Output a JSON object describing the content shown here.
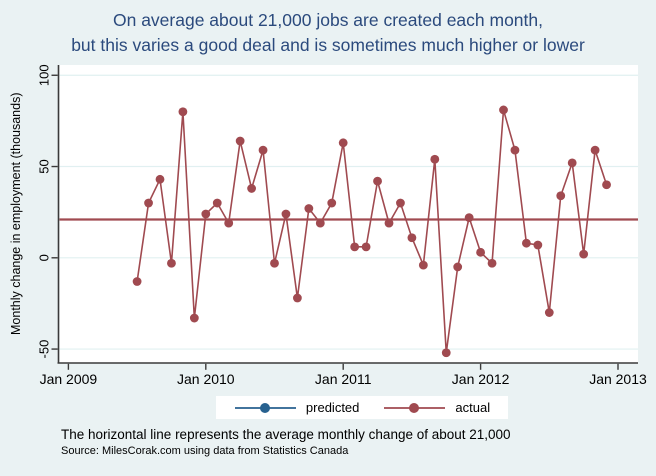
{
  "title": {
    "line1": "On average about 21,000 jobs are created each month,",
    "line2": "but this varies a good deal and is sometimes much higher or lower"
  },
  "axes": {
    "y_label": "Monthly change in employment (thousands)",
    "y_tick_labels": [
      "100",
      "50",
      "0",
      "-50"
    ],
    "x_tick_labels": [
      "Jan 2009",
      "Jan 2010",
      "Jan 2011",
      "Jan 2012",
      "Jan 2013"
    ]
  },
  "legend": {
    "items": [
      {
        "label": "predicted",
        "color": "#27618f"
      },
      {
        "label": "actual",
        "color": "#a04a50"
      }
    ]
  },
  "notes": {
    "horizontal_line": "The horizontal line represents the average monthly change of about 21,000",
    "source": "Source: MilesCorak.com using data from Statistics Canada"
  },
  "colors": {
    "background": "#eaf2f3",
    "plot_background": "#ffffff",
    "grid": "#e1f0f1",
    "axis": "#3a3a3a",
    "tick_text": "#000000",
    "title_text": "#2b4a7d",
    "actual": "#a04a50",
    "predicted": "#27618f"
  },
  "chart_data": {
    "type": "line",
    "title": "On average about 21,000 jobs are created each month, but this varies a good deal and is sometimes much higher or lower",
    "ylabel": "Monthly change in employment (thousands)",
    "xlabel": "",
    "grid": true,
    "legend_position": "bottom",
    "x_axis_ticks": [
      "Jan 2009",
      "Jan 2010",
      "Jan 2011",
      "Jan 2012",
      "Jan 2013"
    ],
    "y_tick_values": [
      100,
      50,
      0,
      -50
    ],
    "ylim": [
      -57,
      106
    ],
    "average_line_value": 21,
    "categories": [
      "Jul 2009",
      "Aug 2009",
      "Sep 2009",
      "Oct 2009",
      "Nov 2009",
      "Dec 2009",
      "Jan 2010",
      "Feb 2010",
      "Mar 2010",
      "Apr 2010",
      "May 2010",
      "Jun 2010",
      "Jul 2010",
      "Aug 2010",
      "Sep 2010",
      "Oct 2010",
      "Nov 2010",
      "Dec 2010",
      "Jan 2011",
      "Feb 2011",
      "Mar 2011",
      "Apr 2011",
      "May 2011",
      "Jun 2011",
      "Jul 2011",
      "Aug 2011",
      "Sep 2011",
      "Oct 2011",
      "Nov 2011",
      "Dec 2011",
      "Jan 2012",
      "Feb 2012",
      "Mar 2012",
      "Apr 2012",
      "May 2012",
      "Jun 2012",
      "Jul 2012",
      "Aug 2012",
      "Sep 2012",
      "Oct 2012",
      "Nov 2012",
      "Dec 2012"
    ],
    "series": [
      {
        "name": "predicted",
        "color": "#27618f",
        "constant_value": 21,
        "note": "flat line at the average, coincides with the maroon horizontal line"
      },
      {
        "name": "actual",
        "color": "#a04a50",
        "values": [
          -13,
          30,
          43,
          -3,
          80,
          -33,
          24,
          30,
          19,
          64,
          38,
          59,
          -3,
          24,
          -22,
          27,
          19,
          30,
          63,
          6,
          6,
          42,
          19,
          30,
          11,
          -4,
          54,
          -52,
          -5,
          22,
          3,
          -3,
          81,
          59,
          8,
          7,
          -30,
          34,
          52,
          2,
          59,
          40
        ]
      }
    ]
  }
}
